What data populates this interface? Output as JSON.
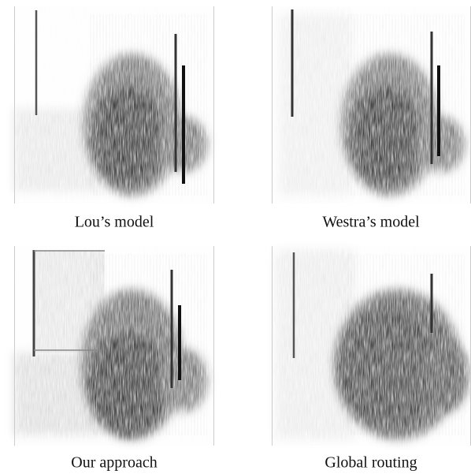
{
  "figure": {
    "panels": [
      {
        "caption": "Lou’s model"
      },
      {
        "caption": "Westra’s model"
      },
      {
        "caption": "Our approach"
      },
      {
        "caption": "Global routing"
      }
    ]
  }
}
